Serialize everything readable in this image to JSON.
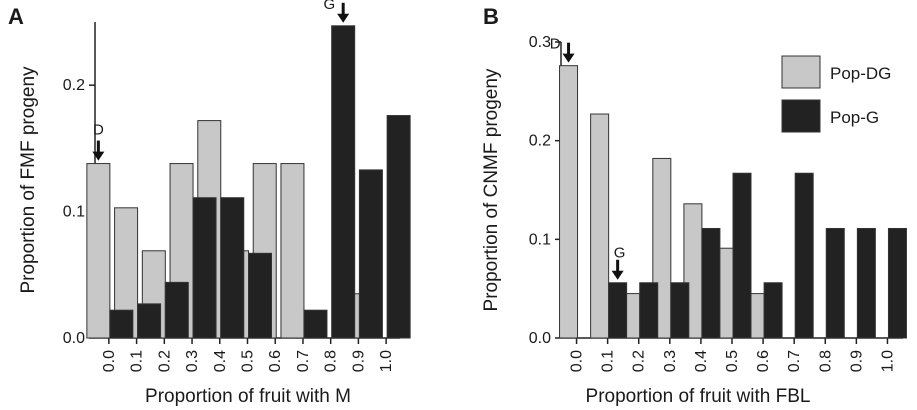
{
  "chart_data": [
    {
      "panel": "A",
      "type": "bar",
      "xlabel": "Proportion of fruit with  M",
      "ylabel": "Proportion of FMF progeny",
      "ylim": [
        0,
        0.25
      ],
      "yticks": [
        "0.0",
        "0.1",
        "0.2"
      ],
      "categories": [
        "0.0",
        "0.1",
        "0.2",
        "0.3",
        "0.4",
        "0.5",
        "0.6",
        "0.7",
        "0.8",
        "0.9",
        "1.0"
      ],
      "series": [
        {
          "name": "Pop-DG",
          "color": "#c8c8c8",
          "values": [
            0.138,
            0.103,
            0.069,
            0.138,
            0.172,
            0.069,
            0.138,
            0.138,
            0.0,
            0.035,
            0.0
          ]
        },
        {
          "name": "Pop-G",
          "color": "#222222",
          "values": [
            0.022,
            0.027,
            0.044,
            0.111,
            0.111,
            0.067,
            0.0,
            0.022,
            0.247,
            0.133,
            0.176
          ]
        }
      ],
      "markers": [
        {
          "label": "D",
          "category": "0.0",
          "series": "Pop-DG"
        },
        {
          "label": "G",
          "category": "0.8",
          "series": "Pop-G"
        }
      ]
    },
    {
      "panel": "B",
      "type": "bar",
      "xlabel": "Proportion of fruit with  FBL",
      "ylabel": "Proportion of CNMF progeny",
      "ylim": [
        0,
        0.3
      ],
      "yticks": [
        "0.0",
        "0.1",
        "0.2",
        "0.3"
      ],
      "categories": [
        "0.0",
        "0.1",
        "0.2",
        "0.3",
        "0.4",
        "0.5",
        "0.6",
        "0.7",
        "0.8",
        "0.9",
        "1.0"
      ],
      "series": [
        {
          "name": "Pop-DG",
          "color": "#c8c8c8",
          "values": [
            0.276,
            0.227,
            0.045,
            0.182,
            0.136,
            0.091,
            0.045,
            0.0,
            0.0,
            0.0,
            0.0
          ]
        },
        {
          "name": "Pop-G",
          "color": "#222222",
          "values": [
            0.0,
            0.056,
            0.056,
            0.056,
            0.111,
            0.167,
            0.056,
            0.167,
            0.111,
            0.111,
            0.111
          ]
        }
      ],
      "markers": [
        {
          "label": "D",
          "category": "0.0",
          "series": "Pop-DG"
        },
        {
          "label": "G",
          "category": "0.1",
          "series": "Pop-G"
        }
      ],
      "legend": {
        "placement": "top-right",
        "entries": [
          {
            "label": "Pop-DG",
            "color": "#c8c8c8"
          },
          {
            "label": "Pop-G",
            "color": "#222222"
          }
        ]
      }
    }
  ]
}
